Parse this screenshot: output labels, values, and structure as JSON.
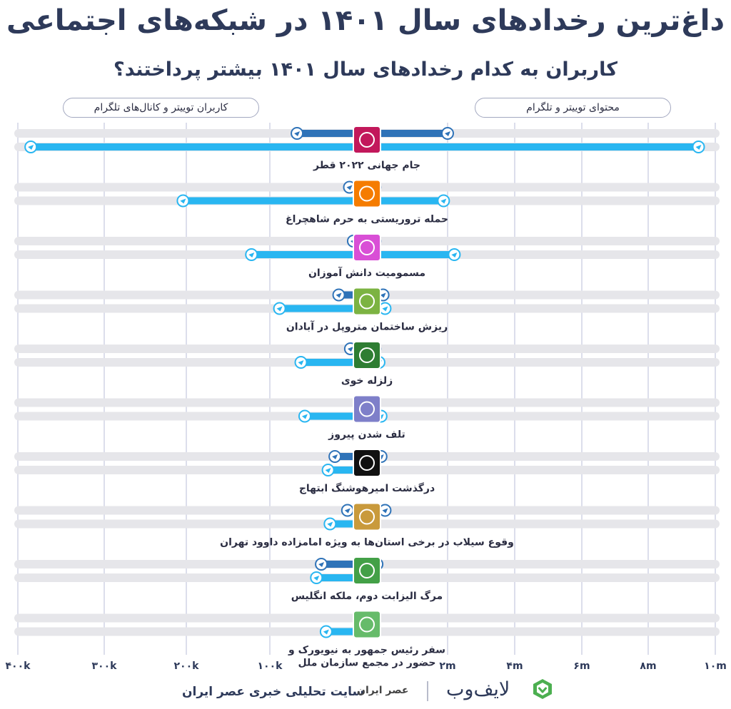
{
  "title": "داغ‌ترین رخدادهای سال ۱۴۰۱ در شبکه‌های اجتماعی",
  "subtitle": "کاربران به کدام رخدادهای سال ۱۴۰۱ بیشتر پرداختند؟",
  "legend": {
    "left": "کاربران توییتر و کانال‌های تلگرام",
    "right": "محتوای توییتر و تلگرام"
  },
  "footer": {
    "source": "سایت تحلیلی خبری عصر ایران",
    "source_logo": "عصر ایران",
    "brand": "لایف‌وب"
  },
  "colors": {
    "telegram": "#2f73b8",
    "twitter": "#29b6f1",
    "track": "#e6e6ea",
    "grid": "#c5c8de"
  },
  "chart_data": {
    "type": "bar",
    "left_axis": {
      "label": "users",
      "ticks": [
        "۴۰۰k",
        "۳۰۰k",
        "۲۰۰k",
        "۱۰۰k"
      ],
      "values": [
        400000,
        300000,
        200000,
        100000
      ],
      "lim": [
        0,
        400000
      ]
    },
    "right_axis": {
      "label": "content",
      "ticks": [
        "۲m",
        "۴m",
        "۶m",
        "۸m",
        "۱۰m"
      ],
      "values": [
        2000000,
        4000000,
        6000000,
        8000000,
        10000000
      ],
      "lim": [
        0,
        10000000
      ]
    },
    "categories": [
      "جام جهانی ۲۰۲۲ قطر",
      "حمله تروریستی به حرم شاهچراغ",
      "مسمومیت دانش آموزان",
      "ریزش ساختمان متروپل در آبادان",
      "زلزله خوی",
      "تلف شدن پیروز",
      "درگذشت امیرهوشنگ ابتهاج",
      "وقوع سیلاب در برخی استان‌ها به ویژه امامزاده داوود تهران",
      "مرگ الیزابت دوم، ملکه انگلیس",
      "سفر رئیس جمهور به نیویورک و حضور در مجمع سازمان ملل"
    ],
    "icons": [
      "football-icon",
      "gun-icon",
      "gas-mask-icon",
      "building-icon",
      "earthquake-house-icon",
      "cheetah-icon",
      "pen-icon",
      "flood-house-icon",
      "queen-icon",
      "podium-icon"
    ],
    "icon_colors": [
      "#c2185b",
      "#f57c00",
      "#d94fd6",
      "#7cb342",
      "#2e7d32",
      "#7e7fc9",
      "#111111",
      "#c99a3c",
      "#43a047",
      "#66bb6a"
    ],
    "series": [
      {
        "name": "کاربران تلگرام",
        "side": "left",
        "values": [
          72000,
          18000,
          14000,
          29000,
          17000,
          0,
          33000,
          20000,
          47000,
          0
        ]
      },
      {
        "name": "محتوای تلگرام",
        "side": "right",
        "values": [
          2000000,
          200000,
          200000,
          400000,
          200000,
          0,
          350000,
          450000,
          250000,
          0
        ]
      },
      {
        "name": "کاربران توییتر",
        "side": "left",
        "values": [
          385000,
          204000,
          122000,
          90000,
          68000,
          64000,
          40000,
          38000,
          52000,
          42000
        ]
      },
      {
        "name": "محتوای توییتر",
        "side": "right",
        "values": [
          9500000,
          1900000,
          2200000,
          450000,
          300000,
          350000,
          0,
          0,
          0,
          0
        ]
      }
    ]
  }
}
